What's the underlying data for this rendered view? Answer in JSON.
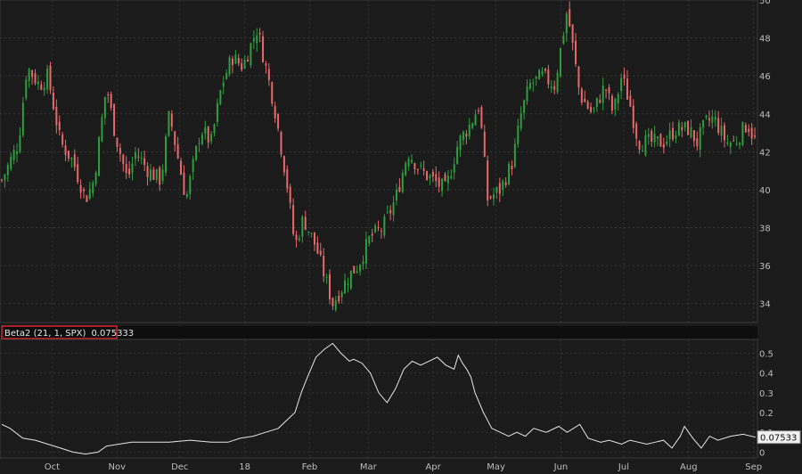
{
  "chart_data": [
    {
      "type": "candlestick",
      "title": "",
      "ylim": [
        33,
        50
      ],
      "y_ticks": [
        "50",
        "48",
        "46",
        "44",
        "42",
        "40",
        "38",
        "36",
        "34"
      ],
      "up_color": "#2e9e3e",
      "down_color": "#e8696b",
      "grid": true,
      "series": [
        {
          "name": "",
          "close_path_days": [
            0,
            8,
            12,
            18,
            22,
            28,
            34,
            40,
            44,
            50,
            54,
            60,
            64,
            70,
            76,
            80,
            88,
            95,
            100,
            105,
            110,
            115,
            122,
            126,
            130,
            136,
            140,
            144,
            150,
            158,
            166,
            170,
            176,
            182,
            188,
            194,
            200,
            206,
            212,
            218,
            224,
            228,
            232,
            238,
            244,
            248,
            252,
            258,
            264,
            270,
            276,
            282,
            288,
            292,
            296,
            300,
            304,
            310,
            316,
            322,
            328,
            332,
            336,
            340,
            346,
            350,
            356,
            360
          ],
          "close_path_values": [
            40.5,
            42.5,
            46.5,
            45.5,
            46,
            42.5,
            41.5,
            39.5,
            40.5,
            45.5,
            43,
            40.5,
            42,
            41,
            40.5,
            44,
            39.5,
            43.2,
            42.5,
            45.5,
            47,
            46.5,
            48.5,
            46.5,
            44.5,
            40.5,
            37,
            38.5,
            37,
            34,
            35.5,
            36,
            37.5,
            38,
            39.5,
            42,
            41,
            40.5,
            40,
            42.5,
            43.5,
            44.5,
            39.5,
            40,
            41.5,
            44,
            45.5,
            46,
            45.5,
            49.5,
            45,
            44,
            45.5,
            44,
            46,
            44.5,
            42.5,
            42.5,
            42.5,
            43.2,
            43.2,
            42.5,
            43.5,
            43.8,
            42.5,
            42.5,
            43.5,
            42.5
          ],
          "n_days": 360
        }
      ],
      "x_ticks": [
        {
          "label": "Oct",
          "day": 24
        },
        {
          "label": "Nov",
          "day": 55
        },
        {
          "label": "Dec",
          "day": 85
        },
        {
          "label": "18",
          "day": 116
        },
        {
          "label": "Feb",
          "day": 147
        },
        {
          "label": "Mar",
          "day": 175
        },
        {
          "label": "Apr",
          "day": 206
        },
        {
          "label": "May",
          "day": 236
        },
        {
          "label": "Jun",
          "day": 267
        },
        {
          "label": "Jul",
          "day": 297
        },
        {
          "label": "Aug",
          "day": 328
        },
        {
          "label": "Sep",
          "day": 359
        }
      ]
    },
    {
      "type": "line",
      "title": "Beta2 (21, 1, SPX)",
      "current_value": "0.075333",
      "current_value_badge": "0.07533",
      "ylim": [
        -0.03,
        0.57
      ],
      "y_ticks": [
        "0.5",
        "0.4",
        "0.3",
        "0.2",
        "0.1",
        "0"
      ],
      "line_color": "#e6e6e6",
      "series": [
        {
          "name": "Beta2",
          "days": [
            0,
            4,
            10,
            16,
            22,
            28,
            34,
            40,
            46,
            50,
            56,
            62,
            70,
            80,
            90,
            100,
            108,
            114,
            120,
            126,
            132,
            136,
            140,
            143,
            146,
            150,
            154,
            158,
            162,
            166,
            168,
            172,
            176,
            180,
            184,
            188,
            192,
            196,
            200,
            204,
            208,
            212,
            216,
            218,
            220,
            222,
            224,
            226,
            230,
            234,
            238,
            242,
            246,
            250,
            254,
            260,
            266,
            270,
            276,
            280,
            286,
            290,
            296,
            300,
            304,
            308,
            312,
            316,
            320,
            324,
            326,
            330,
            334,
            338,
            342,
            348,
            354,
            360
          ],
          "values": [
            0.14,
            0.12,
            0.07,
            0.06,
            0.04,
            0.02,
            0.0,
            -0.01,
            0.0,
            0.03,
            0.04,
            0.05,
            0.05,
            0.05,
            0.06,
            0.05,
            0.05,
            0.07,
            0.08,
            0.1,
            0.12,
            0.16,
            0.2,
            0.3,
            0.38,
            0.48,
            0.52,
            0.55,
            0.5,
            0.46,
            0.47,
            0.45,
            0.4,
            0.3,
            0.25,
            0.32,
            0.42,
            0.46,
            0.44,
            0.46,
            0.48,
            0.44,
            0.42,
            0.49,
            0.45,
            0.42,
            0.38,
            0.3,
            0.2,
            0.12,
            0.1,
            0.08,
            0.1,
            0.08,
            0.12,
            0.1,
            0.13,
            0.1,
            0.14,
            0.07,
            0.05,
            0.06,
            0.04,
            0.06,
            0.05,
            0.04,
            0.05,
            0.06,
            0.02,
            0.08,
            0.13,
            0.07,
            0.02,
            0.08,
            0.06,
            0.08,
            0.09,
            0.075333
          ]
        }
      ]
    }
  ]
}
